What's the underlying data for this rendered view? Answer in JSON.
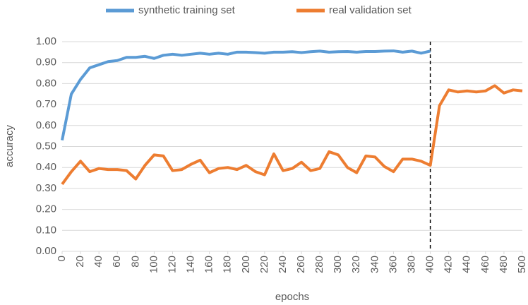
{
  "chart_data": {
    "type": "line",
    "x_label": "epochs",
    "y_label": "accuracy",
    "x": [
      0,
      10,
      20,
      30,
      40,
      50,
      60,
      70,
      80,
      90,
      100,
      110,
      120,
      130,
      140,
      150,
      160,
      170,
      180,
      190,
      200,
      210,
      220,
      230,
      240,
      250,
      260,
      270,
      280,
      290,
      300,
      310,
      320,
      330,
      340,
      350,
      360,
      370,
      380,
      390,
      400,
      410,
      420,
      430,
      440,
      450,
      460,
      470,
      480,
      490,
      500
    ],
    "series": [
      {
        "name": "synthetic training set",
        "color": "#5b9bd5",
        "values": [
          0.53,
          0.75,
          0.82,
          0.875,
          0.89,
          0.905,
          0.91,
          0.925,
          0.925,
          0.93,
          0.92,
          0.935,
          0.94,
          0.935,
          0.94,
          0.945,
          0.94,
          0.945,
          0.94,
          0.95,
          0.95,
          0.948,
          0.945,
          0.95,
          0.95,
          0.952,
          0.948,
          0.952,
          0.955,
          0.95,
          0.952,
          0.953,
          0.95,
          0.953,
          0.953,
          0.955,
          0.956,
          0.95,
          0.955,
          0.945,
          0.955,
          null,
          null,
          null,
          null,
          null,
          null,
          null,
          null,
          null,
          null
        ]
      },
      {
        "name": "real validation set",
        "color": "#ed7d31",
        "values": [
          0.32,
          0.38,
          0.43,
          0.38,
          0.395,
          0.39,
          0.39,
          0.385,
          0.345,
          0.41,
          0.46,
          0.455,
          0.385,
          0.39,
          0.415,
          0.435,
          0.375,
          0.395,
          0.4,
          0.39,
          0.41,
          0.38,
          0.365,
          0.465,
          0.385,
          0.395,
          0.425,
          0.385,
          0.395,
          0.475,
          0.46,
          0.4,
          0.375,
          0.455,
          0.45,
          0.405,
          0.38,
          0.44,
          0.44,
          0.43,
          0.41,
          0.695,
          0.77,
          0.76,
          0.765,
          0.76,
          0.765,
          0.79,
          0.755,
          0.77,
          0.765
        ]
      }
    ],
    "xlim": [
      0,
      500
    ],
    "xticks": [
      0,
      20,
      40,
      60,
      80,
      100,
      120,
      140,
      160,
      180,
      200,
      220,
      240,
      260,
      280,
      300,
      320,
      340,
      360,
      380,
      400,
      420,
      440,
      460,
      480,
      500
    ],
    "ylim": [
      0,
      1
    ],
    "yticks": [
      {
        "value": 0,
        "label": "0.00"
      },
      {
        "value": 0.1,
        "label": "0.10"
      },
      {
        "value": 0.2,
        "label": "0.20"
      },
      {
        "value": 0.3,
        "label": "0.30"
      },
      {
        "value": 0.4,
        "label": "0.40"
      },
      {
        "value": 0.5,
        "label": "0.50"
      },
      {
        "value": 0.6,
        "label": "0.60"
      },
      {
        "value": 0.7,
        "label": "0.70"
      },
      {
        "value": 0.8,
        "label": "0.80"
      },
      {
        "value": 0.9,
        "label": "0.90"
      },
      {
        "value": 1,
        "label": "1.00"
      }
    ],
    "grid": true,
    "legend": "top",
    "vlines": [
      400
    ]
  }
}
